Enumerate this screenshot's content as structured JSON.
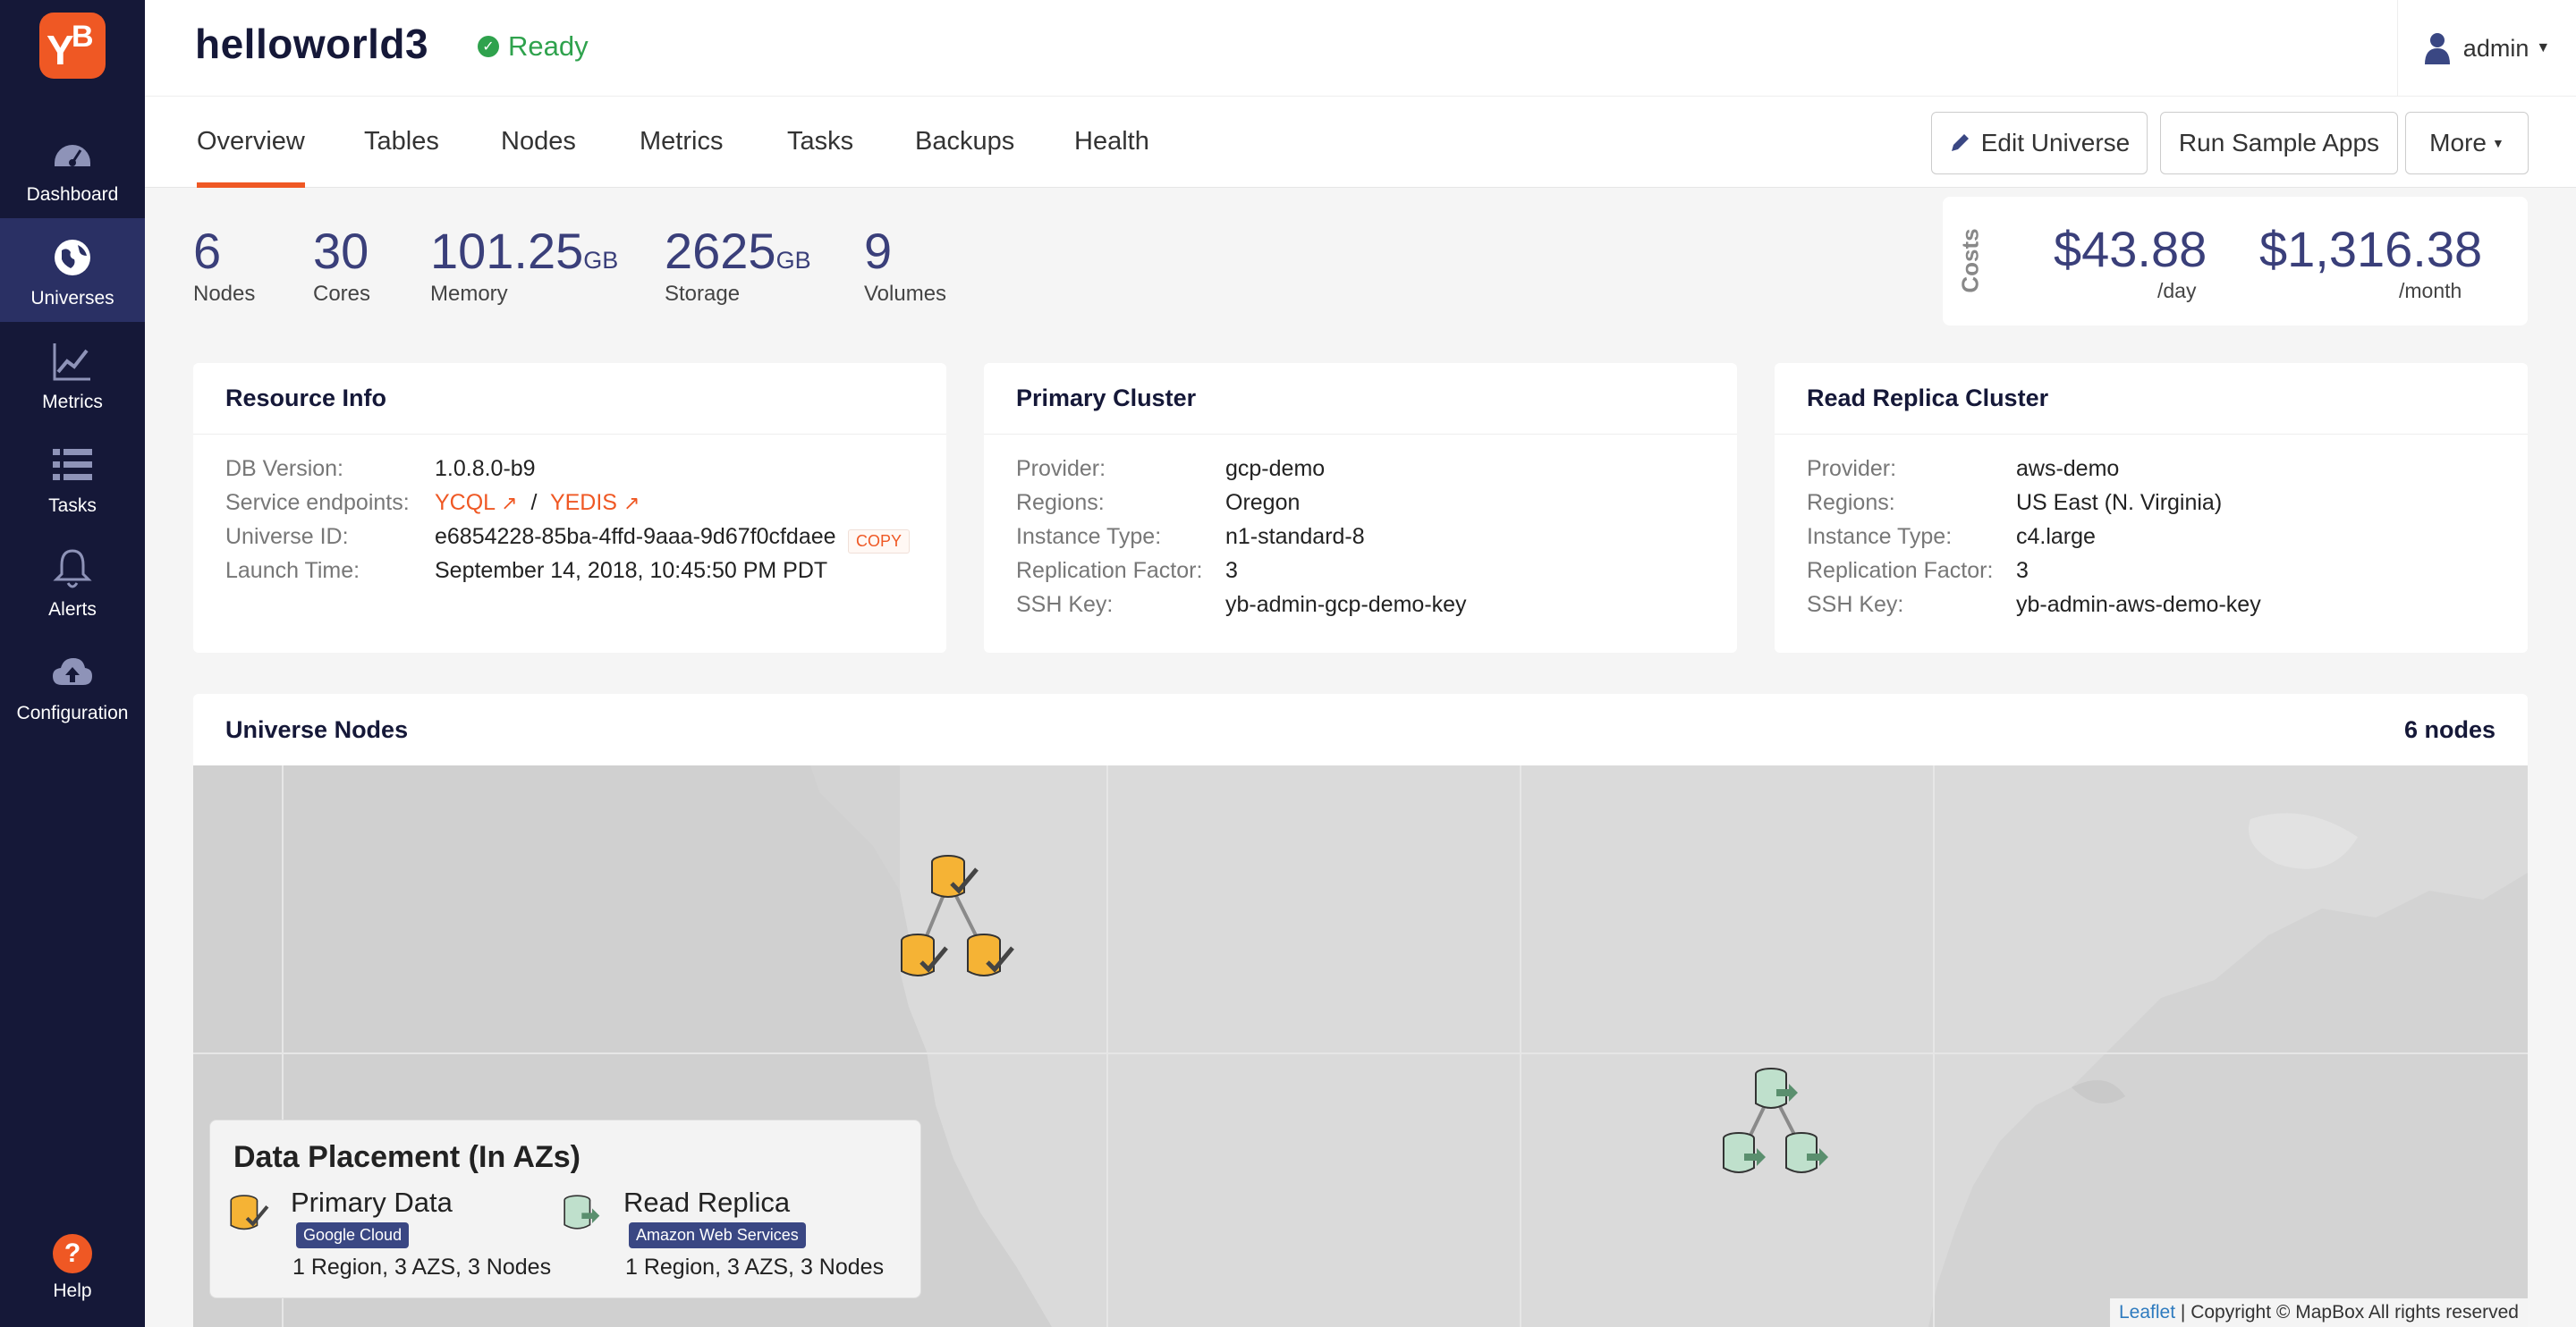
{
  "sidebar": {
    "logo_text": "YB",
    "items": [
      {
        "label": "Dashboard",
        "icon": "dashboard-icon"
      },
      {
        "label": "Universes",
        "icon": "globe-icon"
      },
      {
        "label": "Metrics",
        "icon": "chart-line-icon"
      },
      {
        "label": "Tasks",
        "icon": "list-icon"
      },
      {
        "label": "Alerts",
        "icon": "bell-icon"
      },
      {
        "label": "Configuration",
        "icon": "cloud-upload-icon"
      }
    ],
    "help": {
      "label": "Help",
      "glyph": "?"
    }
  },
  "header": {
    "title": "helloworld3",
    "status": "Ready",
    "status_color": "#2fa24d",
    "user": "admin"
  },
  "tabs": [
    "Overview",
    "Tables",
    "Nodes",
    "Metrics",
    "Tasks",
    "Backups",
    "Health"
  ],
  "actions": {
    "edit": "Edit Universe",
    "run": "Run Sample Apps",
    "more": "More"
  },
  "stats": [
    {
      "value": "6",
      "unit": "",
      "label": "Nodes"
    },
    {
      "value": "30",
      "unit": "",
      "label": "Cores"
    },
    {
      "value": "101.25",
      "unit": "GB",
      "label": "Memory"
    },
    {
      "value": "2625",
      "unit": "GB",
      "label": "Storage"
    },
    {
      "value": "9",
      "unit": "",
      "label": "Volumes"
    }
  ],
  "costs": {
    "label": "Costs",
    "daily": "$43.88",
    "daily_label": "/day",
    "monthly": "$1,316.38",
    "monthly_label": "/month"
  },
  "resource_info": {
    "title": "Resource Info",
    "db_version_label": "DB Version:",
    "db_version": "1.0.8.0-b9",
    "endpoints_label": "Service endpoints:",
    "endpoint_ycql": "YCQL",
    "endpoint_sep": "/",
    "endpoint_yedis": "YEDIS",
    "universe_id_label": "Universe ID:",
    "universe_id": "e6854228-85ba-4ffd-9aaa-9d67f0cfdaee",
    "copy_label": "COPY",
    "launch_time_label": "Launch Time:",
    "launch_time": "September 14, 2018, 10:45:50 PM PDT"
  },
  "primary_cluster": {
    "title": "Primary Cluster",
    "rows": [
      {
        "k": "Provider:",
        "v": "gcp-demo"
      },
      {
        "k": "Regions:",
        "v": "Oregon"
      },
      {
        "k": "Instance Type:",
        "v": "n1-standard-8"
      },
      {
        "k": "Replication Factor:",
        "v": "3"
      },
      {
        "k": "SSH Key:",
        "v": "yb-admin-gcp-demo-key"
      }
    ]
  },
  "read_replica": {
    "title": "Read Replica Cluster",
    "rows": [
      {
        "k": "Provider:",
        "v": "aws-demo"
      },
      {
        "k": "Regions:",
        "v": "US East (N. Virginia)"
      },
      {
        "k": "Instance Type:",
        "v": "c4.large"
      },
      {
        "k": "Replication Factor:",
        "v": "3"
      },
      {
        "k": "SSH Key:",
        "v": "yb-admin-aws-demo-key"
      }
    ]
  },
  "universe_nodes": {
    "title": "Universe Nodes",
    "count": "6 nodes"
  },
  "legend": {
    "title": "Data Placement (In AZs)",
    "primary_name": "Primary Data",
    "primary_tag": "Google Cloud",
    "primary_desc": "1 Region, 3 AZS, 3 Nodes",
    "replica_name": "Read Replica",
    "replica_tag": "Amazon Web Services",
    "replica_desc": "1 Region, 3 AZS, 3 Nodes"
  },
  "attribution": {
    "leaflet": "Leaflet",
    "copyright": "| Copyright © MapBox All rights reserved"
  },
  "colors": {
    "sidebar_bg": "#151838",
    "sidebar_active": "#2a3064",
    "accent": "#ef5824",
    "stat_value": "#3a3f7a",
    "primary_node": "#f5b335",
    "replica_node": "#bfe0cc"
  }
}
